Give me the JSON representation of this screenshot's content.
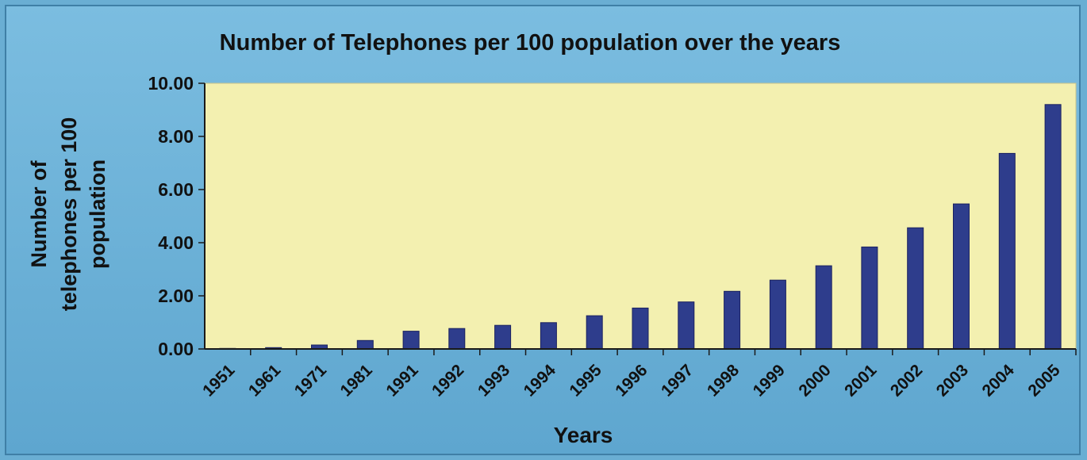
{
  "chart_data": {
    "type": "bar",
    "title": "Number of Telephones per 100 population over the years",
    "xlabel": "Years",
    "ylabel_lines": [
      "Number of",
      "telephones per 100",
      "population"
    ],
    "categories": [
      "1951",
      "1961",
      "1971",
      "1981",
      "1991",
      "1992",
      "1993",
      "1994",
      "1995",
      "1996",
      "1997",
      "1998",
      "1999",
      "2000",
      "2001",
      "2002",
      "2003",
      "2004",
      "2005"
    ],
    "values": [
      0.02,
      0.05,
      0.15,
      0.32,
      0.67,
      0.77,
      0.89,
      0.99,
      1.25,
      1.54,
      1.77,
      2.17,
      2.59,
      3.13,
      3.84,
      4.56,
      5.46,
      7.36,
      9.2
    ],
    "ylim": [
      0,
      10
    ],
    "yticks": [
      "0.00",
      "2.00",
      "4.00",
      "6.00",
      "8.00",
      "10.00"
    ],
    "grid": false,
    "legend": "none",
    "colors": {
      "bar": "#2e3d8c",
      "bar_edge": "#1b2260",
      "plot_bg": "#f3f0b0",
      "axis": "#1a1a1a",
      "text": "#111111"
    }
  }
}
